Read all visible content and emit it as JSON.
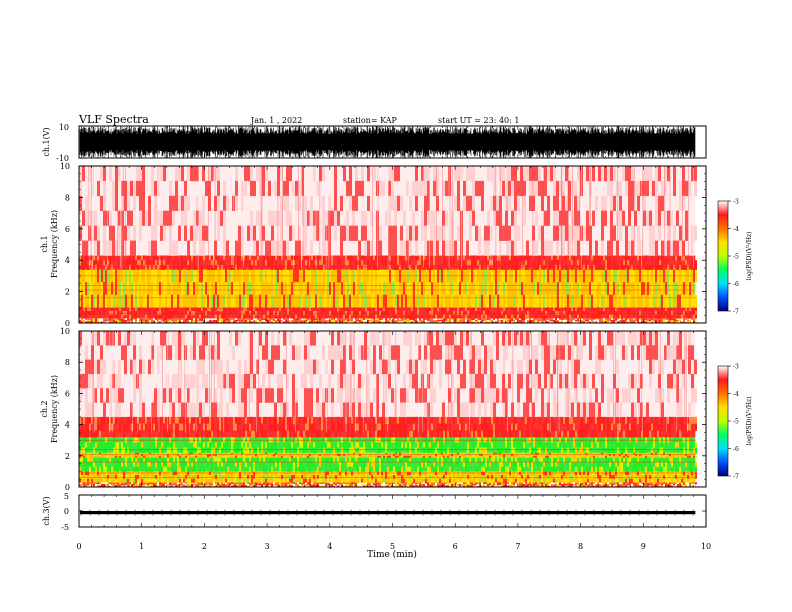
{
  "header": {
    "title": "VLF Spectra",
    "date": "Jan. 1 , 2022",
    "station": "station= KAP",
    "start": "start UT =  23: 40: 1"
  },
  "colors": {
    "spectrogram_low": "#ffffff",
    "spectrogram_mid": "#ff3030",
    "spectrogram_high": "#ffee00",
    "spectrogram_peak": "#22ee22",
    "waveform": "#000000",
    "colorbar": [
      "#000080",
      "#0050ff",
      "#00e0ff",
      "#00ff60",
      "#c0ff00",
      "#ffe000",
      "#ff7000",
      "#ff1a1a",
      "#ffffff"
    ]
  },
  "chart_data": [
    {
      "type": "line",
      "name": "ch1-waveform",
      "ylabel": "ch.1(V)",
      "ylim": [
        -10,
        10
      ],
      "yticks": [
        "10",
        "-10"
      ],
      "xlim": [
        0,
        10
      ],
      "description_values": "dense noise signal spanning full range"
    },
    {
      "type": "heatmap",
      "name": "ch1-spectrogram",
      "ylabel_line1": "ch.1",
      "ylabel_line2": "Frequency (kHz)",
      "ylim": [
        0,
        10
      ],
      "yticks": [
        "0",
        "2",
        "4",
        "6",
        "8",
        "10"
      ],
      "xlim": [
        0,
        10
      ],
      "data_end_min": 9.83,
      "bands": [
        {
          "from": 0.0,
          "to": 0.3,
          "level": "mixed"
        },
        {
          "from": 0.3,
          "to": 1.0,
          "level": "mid"
        },
        {
          "from": 1.0,
          "to": 3.4,
          "level": "high"
        },
        {
          "from": 3.4,
          "to": 4.3,
          "level": "mid"
        },
        {
          "from": 4.3,
          "to": 10.0,
          "level": "low"
        }
      ],
      "colorbar": {
        "ticks": [
          "-3",
          "-4",
          "-5",
          "-6",
          "-7"
        ],
        "label": "log(PSD)(V²/Hz)"
      }
    },
    {
      "type": "heatmap",
      "name": "ch2-spectrogram",
      "ylabel_line1": "ch.2",
      "ylabel_line2": "Frequency (kHz)",
      "ylim": [
        0,
        10
      ],
      "yticks": [
        "0",
        "2",
        "4",
        "6",
        "8",
        "10"
      ],
      "xlim": [
        0,
        10
      ],
      "data_end_min": 9.83,
      "bands": [
        {
          "from": 0.0,
          "to": 0.3,
          "level": "mixed"
        },
        {
          "from": 0.3,
          "to": 1.0,
          "level": "high"
        },
        {
          "from": 1.0,
          "to": 1.9,
          "level": "peak"
        },
        {
          "from": 1.9,
          "to": 2.2,
          "level": "high"
        },
        {
          "from": 2.2,
          "to": 3.2,
          "level": "peak"
        },
        {
          "from": 3.2,
          "to": 4.5,
          "level": "mid"
        },
        {
          "from": 4.5,
          "to": 10.0,
          "level": "low"
        }
      ],
      "colorbar": {
        "ticks": [
          "-3",
          "-4",
          "-5",
          "-6",
          "-7"
        ],
        "label": "log(PSD)(V²/Hz)"
      }
    },
    {
      "type": "line",
      "name": "ch3-waveform",
      "ylabel": "ch.3(V)",
      "ylim": [
        -5,
        5
      ],
      "yticks": [
        "5",
        "0",
        "-5"
      ],
      "xlim": [
        0,
        10
      ],
      "level": -0.5,
      "amplitude": 0.5
    }
  ],
  "xaxis": {
    "label": "Time (min)",
    "ticks": [
      "0",
      "1",
      "2",
      "3",
      "4",
      "5",
      "6",
      "7",
      "8",
      "9",
      "10"
    ]
  }
}
